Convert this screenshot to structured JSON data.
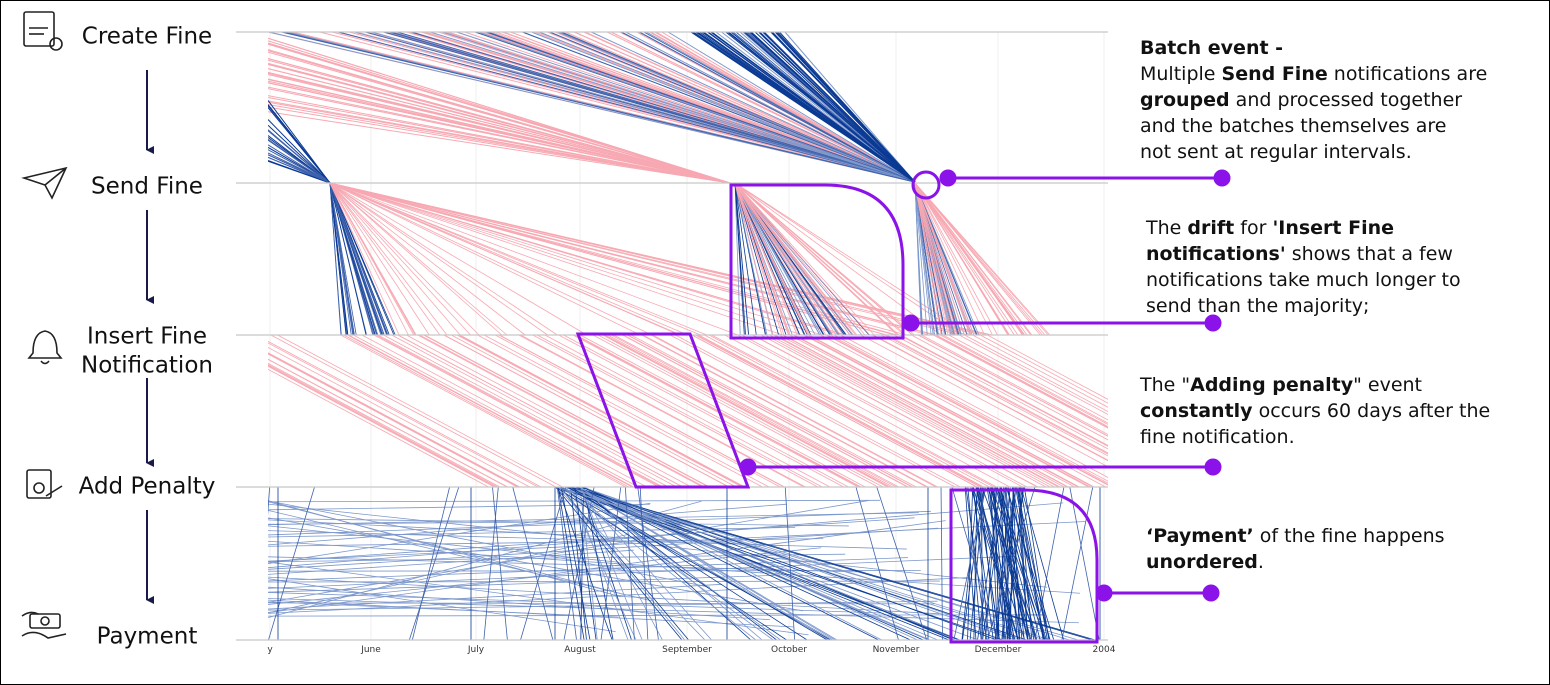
{
  "stages": [
    [
      "Create Fine"
    ],
    [
      "Send Fine"
    ],
    [
      "Insert Fine",
      "Notification"
    ],
    [
      "Add Penalty"
    ],
    [
      "Payment"
    ]
  ],
  "x_axis_labels": [
    "y",
    "June",
    "July",
    "August",
    "September",
    "October",
    "November",
    "December",
    "2004"
  ],
  "annotations": [
    [
      [
        {
          "text": "Batch event -",
          "bold": true
        }
      ],
      [
        {
          "text": "Multiple ",
          "bold": false
        },
        {
          "text": "Send Fine",
          "bold": true
        },
        {
          "text": " notifications are",
          "bold": false
        }
      ],
      [
        {
          "text": "grouped",
          "bold": true
        },
        {
          "text": " and processed together",
          "bold": false
        }
      ],
      [
        {
          "text": "and the batches themselves are",
          "bold": false
        }
      ],
      [
        {
          "text": "not sent at regular intervals.",
          "bold": false
        }
      ]
    ],
    [
      [
        {
          "text": "The ",
          "bold": false
        },
        {
          "text": "drift",
          "bold": true
        },
        {
          "text": " for ",
          "bold": false
        },
        {
          "text": "'Insert Fine",
          "bold": true
        }
      ],
      [
        {
          "text": "notifications'",
          "bold": true
        },
        {
          "text": " shows that a few",
          "bold": false
        }
      ],
      [
        {
          "text": "notifications take much longer to",
          "bold": false
        }
      ],
      [
        {
          "text": "send than the majority;",
          "bold": false
        }
      ]
    ],
    [
      [
        {
          "text": "The \"",
          "bold": false
        },
        {
          "text": "Adding penalty",
          "bold": true
        },
        {
          "text": "\" event",
          "bold": false
        }
      ],
      [
        {
          "text": "constantly",
          "bold": true
        },
        {
          "text": " occurs 60 days after the",
          "bold": false
        }
      ],
      [
        {
          "text": "fine notification.",
          "bold": false
        }
      ]
    ],
    [
      [
        {
          "text": "‘Payment’",
          "bold": true
        },
        {
          "text": " of the fine happens",
          "bold": false
        }
      ],
      [
        {
          "text": "unordered",
          "bold": true
        },
        {
          "text": ".",
          "bold": false
        }
      ]
    ]
  ]
}
